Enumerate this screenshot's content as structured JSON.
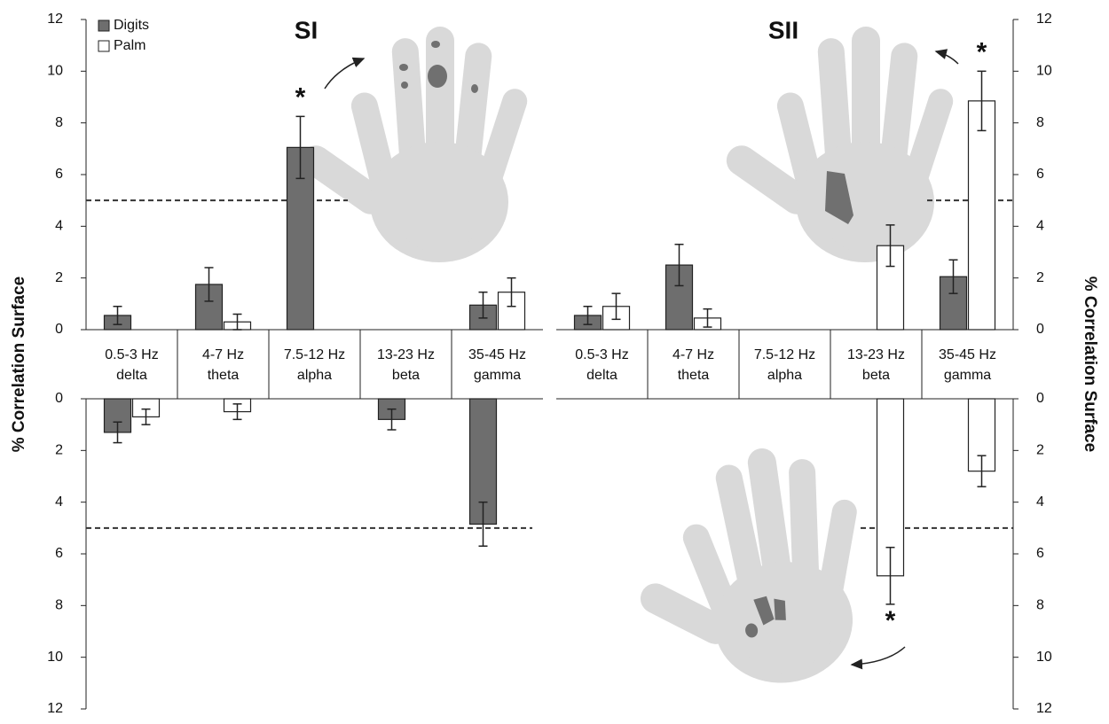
{
  "chart_data": [
    {
      "type": "bar",
      "title": "SI",
      "y_label": "% Correlation Surface",
      "categories": [
        [
          "0.5-3 Hz",
          "delta"
        ],
        [
          "4-7 Hz",
          "theta"
        ],
        [
          "7.5-12 Hz",
          "alpha"
        ],
        [
          "13-23 Hz",
          "beta"
        ],
        [
          "35-45 Hz",
          "gamma"
        ]
      ],
      "ylim": [
        0,
        12
      ],
      "yticks": [
        0,
        2,
        4,
        6,
        8,
        10,
        12
      ],
      "threshold": 5,
      "legend": "upper left",
      "axis_side": "left",
      "series": [
        {
          "name": "Digits",
          "color": "#6e6e6e",
          "values": [
            0.55,
            1.75,
            7.05,
            null,
            0.95
          ],
          "errors": [
            0.35,
            0.65,
            1.2,
            null,
            0.5
          ],
          "significance": [
            null,
            null,
            "*",
            null,
            null
          ]
        },
        {
          "name": "Palm",
          "color": "#ffffff",
          "values": [
            null,
            0.3,
            null,
            null,
            1.45
          ],
          "errors": [
            null,
            0.3,
            null,
            null,
            0.55
          ]
        }
      ],
      "lower_series": [
        {
          "color": "#6e6e6e",
          "values": [
            1.3,
            null,
            null,
            0.8,
            4.85
          ],
          "errors": [
            0.4,
            null,
            null,
            0.4,
            0.85
          ]
        },
        {
          "color": "#ffffff",
          "values": [
            0.7,
            0.5,
            null,
            null,
            null
          ],
          "errors": [
            0.3,
            0.3,
            null,
            null,
            null
          ]
        }
      ]
    },
    {
      "type": "bar",
      "title": "SII",
      "y_label": "% Correlation Surface",
      "categories": [
        [
          "0.5-3 Hz",
          "delta"
        ],
        [
          "4-7 Hz",
          "theta"
        ],
        [
          "7.5-12 Hz",
          "alpha"
        ],
        [
          "13-23 Hz",
          "beta"
        ],
        [
          "35-45 Hz",
          "gamma"
        ]
      ],
      "ylim": [
        0,
        12
      ],
      "yticks": [
        0,
        2,
        4,
        6,
        8,
        10,
        12
      ],
      "threshold": 5,
      "axis_side": "right",
      "series": [
        {
          "color": "#6e6e6e",
          "values": [
            0.55,
            2.5,
            null,
            null,
            2.05
          ],
          "errors": [
            0.35,
            0.8,
            null,
            null,
            0.65
          ]
        },
        {
          "color": "#ffffff",
          "values": [
            0.9,
            0.45,
            null,
            3.25,
            8.85
          ],
          "errors": [
            0.5,
            0.35,
            null,
            0.8,
            1.15
          ],
          "significance": [
            null,
            null,
            null,
            null,
            "*"
          ]
        }
      ],
      "lower_series": [
        {
          "color": "#6e6e6e",
          "values": [
            null,
            null,
            null,
            null,
            null
          ],
          "errors": [
            null,
            null,
            null,
            null,
            null
          ]
        },
        {
          "color": "#ffffff",
          "values": [
            null,
            null,
            null,
            6.85,
            2.8
          ],
          "errors": [
            null,
            null,
            null,
            1.1,
            0.6
          ],
          "significance": [
            null,
            null,
            null,
            "*",
            null
          ]
        }
      ]
    }
  ]
}
